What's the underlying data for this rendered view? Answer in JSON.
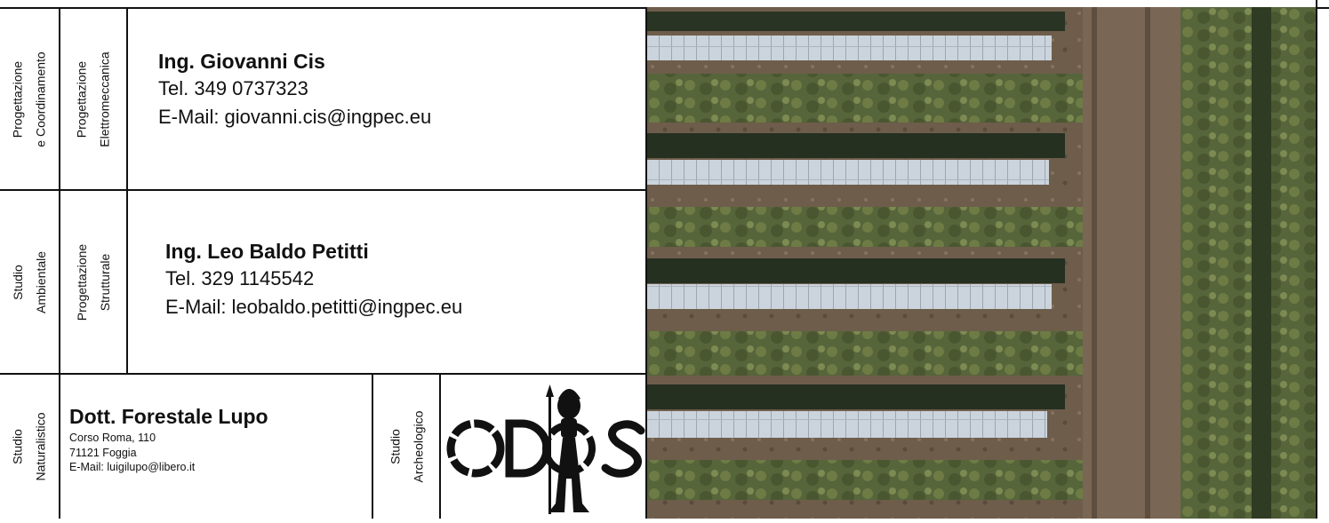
{
  "left_labels": {
    "col1_row1": [
      "Progettazione",
      "e Coordinamento"
    ],
    "col2_row1": [
      "Progettazione",
      "Elettromeccanica"
    ],
    "col1_row2": [
      "Studio",
      "Ambientale"
    ],
    "col2_row2": [
      "Progettazione",
      "Strutturale"
    ],
    "col1_row3": [
      "Studio",
      "Naturalistico"
    ],
    "archeo": [
      "Studio",
      "Archeologico"
    ]
  },
  "contacts": [
    {
      "name": "Ing. Giovanni Cis",
      "phone": "Tel. 349 0737323",
      "email": "E-Mail: giovanni.cis@ingpec.eu"
    },
    {
      "name": "Ing. Leo Baldo Petitti",
      "phone": "Tel. 329 1145542",
      "email": "E-Mail: leobaldo.petitti@ingpec.eu"
    }
  ],
  "naturalist": {
    "name": "Dott. Forestale Lupo",
    "address": "Corso Roma, 110",
    "city": "71121 Foggia",
    "email": "E-Mail: luigilupo@libero.it"
  },
  "logo": {
    "text": "ODOS",
    "icon": "warrior-figure-icon"
  },
  "photo": {
    "subject": "aerial-solar-field-photo",
    "colors": {
      "soil": "#6b5a48",
      "vegetation": "#5d6b3a",
      "panel": "#c9d3dc",
      "shadow": "#23301f"
    }
  }
}
